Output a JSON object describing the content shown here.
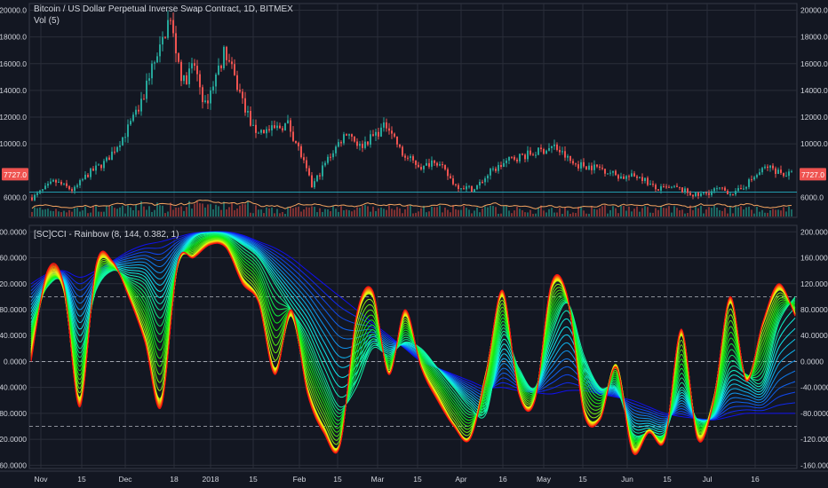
{
  "header": {
    "symbol_title": "Bitcoin / US Dollar Perpetual Inverse Swap Contract, 1D, BITMEX",
    "volume_label": "Vol (5)"
  },
  "indicator": {
    "title": "[SC]CCI - Rainbow (8, 144, 0.382, 1)"
  },
  "colors": {
    "background": "#131722",
    "grid": "#2a2e39",
    "text": "#d1d4dc",
    "candle_up": "#26a69a",
    "candle_down": "#ef5350",
    "price_badge": "#ef5350",
    "volume_ma": "#f4a460"
  },
  "chart_data": [
    {
      "type": "candlestick",
      "title": "Bitcoin / US Dollar Perpetual Inverse Swap Contract, 1D, BITMEX",
      "ylim": [
        4500,
        20500
      ],
      "y_ticks": [
        "20000.0",
        "18000.0",
        "16000.0",
        "14000.0",
        "12000.0",
        "10000.0",
        "6000.0"
      ],
      "last_price": "7727.0",
      "horizontal_level": 6400,
      "x_ticks": [
        "Nov",
        "15",
        "Dec",
        "18",
        "2018",
        "15",
        "Feb",
        "15",
        "Mar",
        "15",
        "Apr",
        "16",
        "May",
        "15",
        "Jun",
        "15",
        "Jul",
        "16"
      ],
      "close_path": [
        {
          "x": "Oct 24",
          "y": 5600
        },
        {
          "x": "Oct 30",
          "y": 6100
        },
        {
          "x": "Nov 06",
          "y": 7200
        },
        {
          "x": "Nov 13",
          "y": 6500
        },
        {
          "x": "Nov 18",
          "y": 7700
        },
        {
          "x": "Nov 25",
          "y": 8700
        },
        {
          "x": "Dec 01",
          "y": 10800
        },
        {
          "x": "Dec 07",
          "y": 13000
        },
        {
          "x": "Dec 10",
          "y": 15500
        },
        {
          "x": "Dec 13",
          "y": 16500
        },
        {
          "x": "Dec 17",
          "y": 19500
        },
        {
          "x": "Dec 22",
          "y": 14500
        },
        {
          "x": "Dec 26",
          "y": 16000
        },
        {
          "x": "Dec 30",
          "y": 12800
        },
        {
          "x": "Jan 06",
          "y": 17000
        },
        {
          "x": "Jan 10",
          "y": 14500
        },
        {
          "x": "Jan 16",
          "y": 11000
        },
        {
          "x": "Jan 22",
          "y": 11000
        },
        {
          "x": "Jan 28",
          "y": 11500
        },
        {
          "x": "Feb 01",
          "y": 9500
        },
        {
          "x": "Feb 06",
          "y": 6800
        },
        {
          "x": "Feb 12",
          "y": 8800
        },
        {
          "x": "Feb 20",
          "y": 11000
        },
        {
          "x": "Feb 25",
          "y": 9800
        },
        {
          "x": "Mar 05",
          "y": 11500
        },
        {
          "x": "Mar 10",
          "y": 9200
        },
        {
          "x": "Mar 18",
          "y": 8200
        },
        {
          "x": "Mar 22",
          "y": 8900
        },
        {
          "x": "Mar 30",
          "y": 6900
        },
        {
          "x": "Apr 06",
          "y": 6600
        },
        {
          "x": "Apr 12",
          "y": 7900
        },
        {
          "x": "Apr 20",
          "y": 8900
        },
        {
          "x": "Apr 28",
          "y": 9300
        },
        {
          "x": "May 05",
          "y": 9800
        },
        {
          "x": "May 12",
          "y": 8500
        },
        {
          "x": "May 22",
          "y": 8200
        },
        {
          "x": "May 30",
          "y": 7500
        },
        {
          "x": "Jun 06",
          "y": 7600
        },
        {
          "x": "Jun 12",
          "y": 6600
        },
        {
          "x": "Jun 20",
          "y": 6700
        },
        {
          "x": "Jun 28",
          "y": 6100
        },
        {
          "x": "Jul 05",
          "y": 6600
        },
        {
          "x": "Jul 12",
          "y": 6300
        },
        {
          "x": "Jul 18",
          "y": 7300
        },
        {
          "x": "Jul 24",
          "y": 8300
        },
        {
          "x": "Jul 28",
          "y": 8000
        },
        {
          "x": "Jul 31",
          "y": 7727
        }
      ]
    },
    {
      "type": "line",
      "title": "[SC]CCI - Rainbow (8, 144, 0.382, 1)",
      "ylim": [
        -165,
        210
      ],
      "y_ticks": [
        "200.0000",
        "160.0000",
        "120.0000",
        "80.0000",
        "40.0000",
        "0.0000",
        "-40.0000",
        "-80.0000",
        "-120.0000",
        "-160.0000"
      ],
      "dashed_levels": [
        100,
        0,
        -100
      ],
      "x_ticks": [
        "Nov",
        "15",
        "Dec",
        "18",
        "2018",
        "15",
        "Feb",
        "15",
        "Mar",
        "15",
        "Apr",
        "16",
        "May",
        "15",
        "Jun",
        "15",
        "Jul",
        "16"
      ],
      "series": [
        {
          "values": [
            0,
            140,
            120,
            -70,
            150,
            155,
            100,
            30,
            -70,
            150,
            160,
            180,
            175,
            120,
            90,
            -20,
            80,
            -50,
            -110,
            -130,
            70,
            110,
            -20,
            80,
            -10,
            -60,
            -100,
            -120,
            -20,
            110,
            -50,
            -60,
            120,
            100,
            -80,
            -90,
            -10,
            -140,
            -110,
            -120,
            50,
            -120,
            -60,
            100,
            -30,
            60,
            120,
            70
          ]
        },
        {
          "values": [
            20,
            125,
            110,
            -55,
            140,
            150,
            105,
            40,
            -55,
            145,
            165,
            185,
            180,
            130,
            95,
            -10,
            70,
            -40,
            -100,
            -125,
            60,
            100,
            -15,
            70,
            -5,
            -50,
            -95,
            -115,
            -15,
            100,
            -45,
            -55,
            110,
            95,
            -70,
            -85,
            -5,
            -130,
            -105,
            -115,
            40,
            -110,
            -55,
            90,
            -25,
            55,
            110,
            75
          ]
        },
        {
          "values": [
            60,
            115,
            120,
            20,
            110,
            140,
            130,
            120,
            80,
            150,
            190,
            198,
            195,
            180,
            160,
            120,
            80,
            40,
            -20,
            -70,
            -40,
            20,
            10,
            30,
            20,
            -10,
            -40,
            -70,
            -80,
            40,
            -10,
            -40,
            40,
            90,
            10,
            -40,
            -40,
            -110,
            -110,
            -110,
            -40,
            -90,
            -80,
            -10,
            -20,
            -30,
            60,
            100
          ]
        },
        {
          "values": [
            120,
            135,
            140,
            130,
            140,
            155,
            170,
            180,
            185,
            192,
            198,
            200,
            200,
            195,
            185,
            175,
            160,
            140,
            120,
            100,
            80,
            60,
            40,
            20,
            0,
            -10,
            -20,
            -30,
            -40,
            -40,
            -45,
            -48,
            -50,
            -45,
            -45,
            -50,
            -55,
            -60,
            -70,
            -80,
            -85,
            -88,
            -90,
            -85,
            -80,
            -80,
            -80,
            -80
          ]
        }
      ]
    }
  ]
}
